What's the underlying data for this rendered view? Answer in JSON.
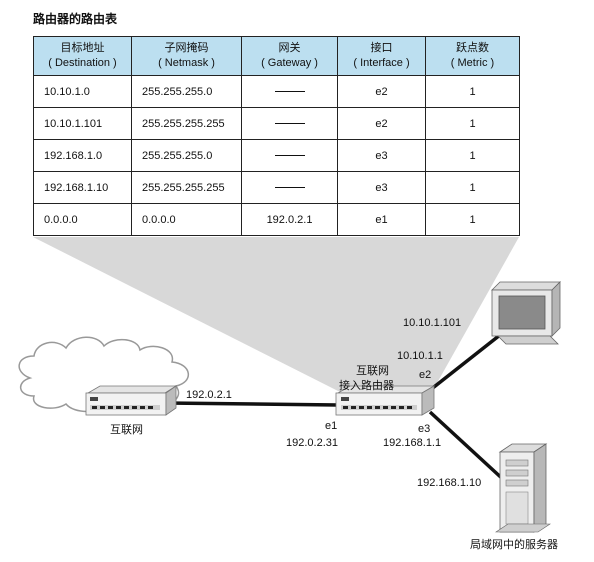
{
  "title": "路由器的路由表",
  "table": {
    "headers": [
      {
        "cn": "目标地址",
        "en": "( Destination )"
      },
      {
        "cn": "子网掩码",
        "en": "( Netmask )"
      },
      {
        "cn": "网关",
        "en": "( Gateway )"
      },
      {
        "cn": "接口",
        "en": "( Interface )"
      },
      {
        "cn": "跃点数",
        "en": "( Metric )"
      }
    ],
    "rows": [
      {
        "destination": "10.10.1.0",
        "netmask": "255.255.255.0",
        "gateway": "",
        "interface": "e2",
        "metric": "1"
      },
      {
        "destination": "10.10.1.101",
        "netmask": "255.255.255.255",
        "gateway": "",
        "interface": "e2",
        "metric": "1"
      },
      {
        "destination": "192.168.1.0",
        "netmask": "255.255.255.0",
        "gateway": "",
        "interface": "e3",
        "metric": "1"
      },
      {
        "destination": "192.168.1.10",
        "netmask": "255.255.255.255",
        "gateway": "",
        "interface": "e3",
        "metric": "1"
      },
      {
        "destination": "0.0.0.0",
        "netmask": "0.0.0.0",
        "gateway": "192.0.2.1",
        "interface": "e1",
        "metric": "1"
      }
    ]
  },
  "diagram": {
    "internet_label": "互联网",
    "internet_router_ip": "192.0.2.1",
    "access_router_label_line1": "互联网",
    "access_router_label_line2": "接入路由器",
    "e1_label": "e1",
    "e1_ip": "192.0.2.31",
    "e2_label": "e2",
    "e2_ip": "10.10.1.1",
    "e3_label": "e3",
    "e3_ip": "192.168.1.1",
    "pc_ip": "10.10.1.101",
    "server_ip": "192.168.1.10",
    "server_label": "局域网中的服务器"
  },
  "colors": {
    "header_bg": "#bcdff0",
    "callout_fill": "#d8d8d8"
  }
}
